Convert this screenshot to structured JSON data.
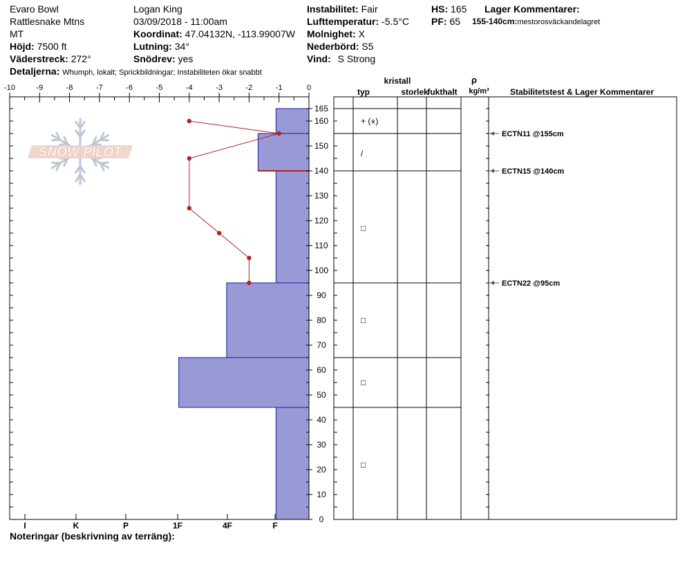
{
  "header": {
    "location": "Evaro Bowl",
    "range": "Rattlesnake Mtns",
    "state": "MT",
    "elevation_label": "Höjd:",
    "elevation": "7500 ft",
    "aspect_label": "Väderstreck:",
    "aspect": "272°",
    "details_label": "Detaljerna:",
    "details": "Whumph, lokalt;  Sprickbildningar;  Instabiliteten ökar snabbt",
    "observer": "Logan King",
    "datetime": "03/09/2018 - 11:00am",
    "coord_label": "Koordinat:",
    "coord": "47.04132N, -113.99007W",
    "slope_label": "Lutning:",
    "slope": "34°",
    "drift_label": "Snödrev:",
    "drift": "yes",
    "instability_label": "Instabilitet:",
    "instability": "Fair",
    "airtemp_label": "Lufttemperatur:",
    "airtemp": "-5.5°C",
    "clouds_label": "Molnighet:",
    "clouds": "X",
    "precip_label": "Nederbörd:",
    "precip": "S5",
    "wind_label": "Vind:",
    "wind": "S Strong",
    "hs_label": "HS:",
    "hs": "165",
    "pf_label": "PF:",
    "pf": "65",
    "layer_comments_label": "Lager Kommentarer:",
    "layer_comment_range": "155-140cm:",
    "layer_comment": "mestorosväckandelagret",
    "notes_label": "Noteringar (beskrivning av terräng):"
  },
  "logo_text": "SNOW PILOT",
  "columns": {
    "crystal": "kristall",
    "type": "typ",
    "size": "storlek",
    "moisture": "fukthalt",
    "rho": "ρ",
    "density_unit": "kg/m³",
    "stability": "Stabilitetstest & Lager Kommentarer"
  },
  "chart_data": {
    "type": "snow_profile",
    "temperature_axis": {
      "ticks": [
        "-10",
        "-9",
        "-8",
        "-7",
        "-6",
        "-5",
        "-4",
        "-3",
        "-2",
        "-1",
        "0"
      ],
      "range": [
        -10,
        0
      ]
    },
    "height_axis": {
      "ticks": [
        "0",
        "10",
        "20",
        "30",
        "40",
        "50",
        "60",
        "70",
        "80",
        "90",
        "100",
        "110",
        "120",
        "130",
        "140",
        "150",
        "160",
        "165"
      ],
      "range": [
        0,
        165
      ]
    },
    "hardness_axis": {
      "ticks": [
        "I",
        "K",
        "P",
        "1F",
        "4F",
        "F"
      ]
    },
    "temperature_profile": [
      {
        "height": 160,
        "temp": -4
      },
      {
        "height": 155,
        "temp": -1
      },
      {
        "height": 145,
        "temp": -4
      },
      {
        "height": 125,
        "temp": -4
      },
      {
        "height": 115,
        "temp": -3
      },
      {
        "height": 105,
        "temp": -2
      },
      {
        "height": 95,
        "temp": -2
      }
    ],
    "hardness_layers": [
      {
        "top": 165,
        "bottom": 155,
        "hardness": "F",
        "temp_scale_value": -1.1
      },
      {
        "top": 155,
        "bottom": 140,
        "hardness": "F+",
        "temp_scale_value": -1.7
      },
      {
        "top": 140,
        "bottom": 95,
        "hardness": "F",
        "temp_scale_value": -1.1
      },
      {
        "top": 95,
        "bottom": 65,
        "hardness": "4F-",
        "temp_scale_value": -2.75
      },
      {
        "top": 65,
        "bottom": 45,
        "hardness": "1F",
        "temp_scale_value": -4.35
      },
      {
        "top": 45,
        "bottom": 0,
        "hardness": "F",
        "temp_scale_value": -1.1
      }
    ],
    "layer_boundaries": [
      165,
      155,
      140,
      95,
      65,
      45
    ],
    "crystal_symbols": [
      {
        "height": 160,
        "symbol": "+ (⨰)"
      },
      {
        "height": 147,
        "symbol": "/"
      },
      {
        "height": 117,
        "symbol": "□"
      },
      {
        "height": 80,
        "symbol": "□"
      },
      {
        "height": 55,
        "symbol": "□"
      },
      {
        "height": 22,
        "symbol": "□"
      }
    ],
    "stability_tests": [
      {
        "height": 155,
        "label": "ECTN11 @155cm"
      },
      {
        "height": 140,
        "label": "ECTN15 @140cm"
      },
      {
        "height": 95,
        "label": "ECTN22 @95cm"
      }
    ],
    "fill_color": "#9999d6",
    "temp_line_color": "#b22222"
  }
}
